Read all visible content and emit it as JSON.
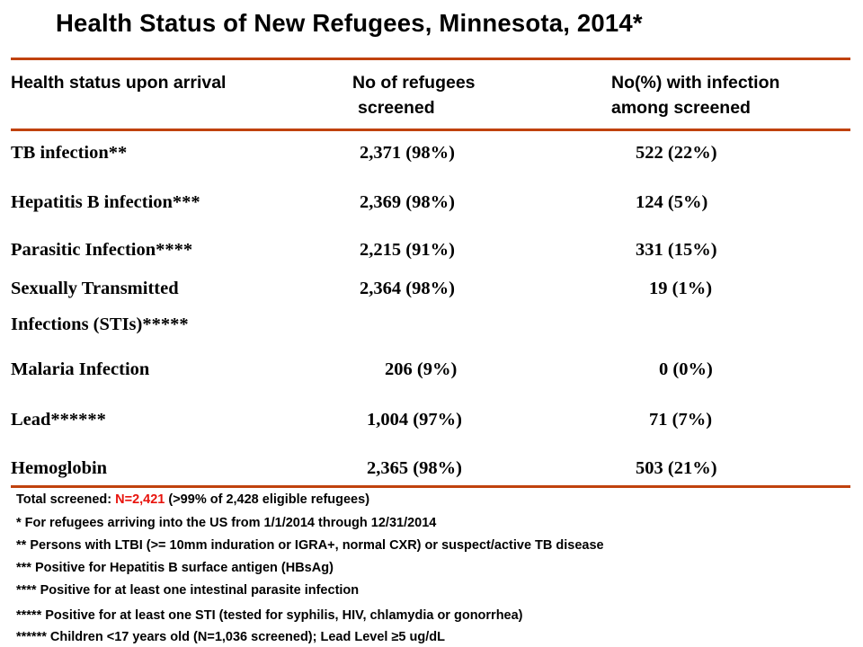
{
  "title": "Health Status of New Refugees, Minnesota, 2014*",
  "colors": {
    "rule": "#c0420e",
    "highlight": "#e8130c",
    "text": "#000000"
  },
  "header": {
    "col1": "Health status upon arrival",
    "col2_line1": "No of refugees",
    "col2_line2": "screened",
    "col3_line1": "No(%) with infection",
    "col3_line2": "among screened"
  },
  "rows": [
    {
      "status": "TB infection**",
      "screened": "2,371 (98%)",
      "infected": "522 (22%)"
    },
    {
      "status": "Hepatitis B infection***",
      "screened": "2,369 (98%)",
      "infected": "124 (5%)"
    },
    {
      "status": "Parasitic Infection****",
      "screened": "2,215 (91%)",
      "infected": "331 (15%)"
    },
    {
      "status": "Sexually Transmitted",
      "status_line2": "Infections (STIs)*****",
      "screened": "2,364 (98%)",
      "infected": "19 (1%)"
    },
    {
      "status": "Malaria Infection",
      "screened": "206 (9%)",
      "infected": "0 (0%)"
    },
    {
      "status": "Lead******",
      "screened": "1,004 (97%)",
      "infected": "71 (7%)"
    },
    {
      "status": "Hemoglobin",
      "screened": "2,365 (98%)",
      "infected": "503 (21%)"
    }
  ],
  "notes": {
    "total_prefix": "Total screened:  ",
    "total_highlight": "N=2,421",
    "total_suffix": " (>99% of 2,428 eligible refugees)",
    "n1": "* For refugees arriving into the US from 1/1/2014 through 12/31/2014",
    "n2": "** Persons with LTBI (>= 10mm induration or IGRA+, normal CXR) or suspect/active TB disease",
    "n3": "*** Positive for Hepatitis B surface antigen (HBsAg)",
    "n4": "**** Positive for at least one intestinal parasite infection",
    "n5": "***** Positive for at least one STI (tested for syphilis, HIV, chlamydia or gonorrhea)",
    "n6": "****** Children <17 years old (N=1,036 screened); Lead Level ≥5 ug/dL"
  }
}
